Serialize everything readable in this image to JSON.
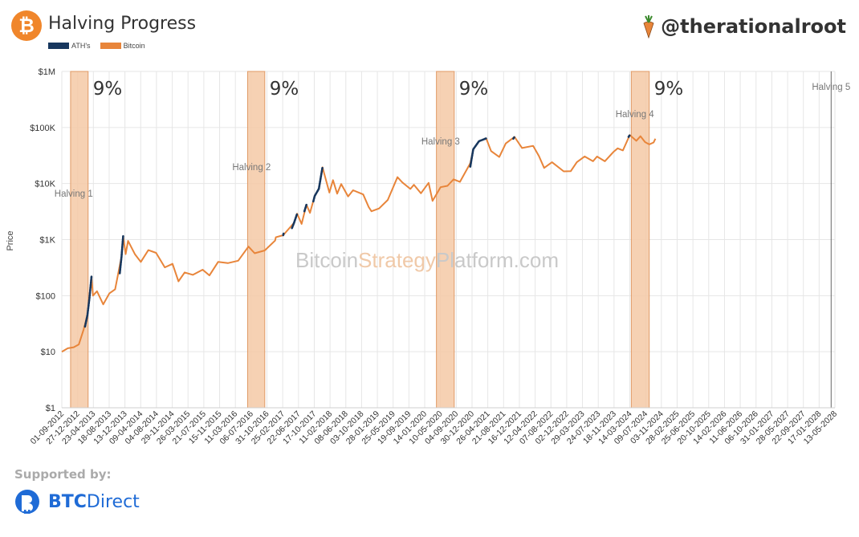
{
  "header": {
    "title": "Halving Progress",
    "logo_glyph": "₿",
    "handle": "@therationalroot"
  },
  "legend": [
    {
      "label": "ATH's",
      "color": "#17375e"
    },
    {
      "label": "Bitcoin",
      "color": "#e8853a"
    }
  ],
  "watermark": {
    "part1": "Bitcoin",
    "part2": "Strategy",
    "part3": "Platform.com"
  },
  "footer": {
    "supported_label": "Supported by:",
    "brand_bold": "BTC",
    "brand_rest": "Direct"
  },
  "chart_data": {
    "type": "line",
    "title": "",
    "ylabel": "Price",
    "yscale": "log",
    "ylim": [
      1,
      1000000
    ],
    "y_ticks": [
      {
        "value": 1,
        "label": "$1"
      },
      {
        "value": 10,
        "label": "$10"
      },
      {
        "value": 100,
        "label": "$100"
      },
      {
        "value": 1000,
        "label": "$1K"
      },
      {
        "value": 10000,
        "label": "$10K"
      },
      {
        "value": 100000,
        "label": "$100K"
      },
      {
        "value": 1000000,
        "label": "$1M"
      }
    ],
    "x_range": [
      "2012-09-01",
      "2028-05-13"
    ],
    "x_ticks": [
      "01-09-2012",
      "27-12-2012",
      "23-04-2013",
      "18-08-2013",
      "13-12-2013",
      "09-04-2014",
      "04-08-2014",
      "29-11-2014",
      "26-03-2015",
      "21-07-2015",
      "15-11-2015",
      "11-03-2016",
      "06-07-2016",
      "31-10-2016",
      "25-02-2017",
      "22-06-2017",
      "17-10-2017",
      "11-02-2018",
      "08-06-2018",
      "03-10-2018",
      "28-01-2019",
      "25-05-2019",
      "19-09-2019",
      "14-01-2020",
      "10-05-2020",
      "04-09-2020",
      "30-12-2020",
      "26-04-2021",
      "21-08-2021",
      "16-12-2021",
      "12-04-2022",
      "07-08-2022",
      "02-12-2022",
      "29-03-2023",
      "24-07-2023",
      "18-11-2023",
      "14-03-2024",
      "09-07-2024",
      "03-11-2024",
      "28-02-2025",
      "25-06-2025",
      "20-10-2025",
      "14-02-2026",
      "11-06-2026",
      "06-10-2026",
      "31-01-2027",
      "28-05-2027",
      "22-09-2027",
      "17-01-2028",
      "13-05-2028"
    ],
    "halvings": [
      {
        "label": "Halving 1",
        "date": "2012-11-28",
        "band_start": "2012-11-05",
        "band_end": "2013-03-15",
        "percent_label": "9%"
      },
      {
        "label": "Halving 2",
        "date": "2016-07-09",
        "band_start": "2016-06-10",
        "band_end": "2016-10-15",
        "percent_label": "9%"
      },
      {
        "label": "Halving 3",
        "date": "2020-05-11",
        "band_start": "2020-04-10",
        "band_end": "2020-08-20",
        "percent_label": "9%"
      },
      {
        "label": "Halving 4",
        "date": "2024-04-20",
        "band_start": "2024-03-25",
        "band_end": "2024-08-05",
        "percent_label": "9%"
      },
      {
        "label": "Halving 5",
        "date": "2028-04-15"
      }
    ],
    "series": [
      {
        "name": "Bitcoin",
        "color": "#e8853a",
        "points": [
          [
            "2012-09-01",
            10
          ],
          [
            "2012-10-15",
            11.5
          ],
          [
            "2012-11-28",
            12
          ],
          [
            "2013-01-05",
            13.5
          ],
          [
            "2013-02-10",
            25
          ],
          [
            "2013-03-10",
            45
          ],
          [
            "2013-04-09",
            220
          ],
          [
            "2013-04-20",
            100
          ],
          [
            "2013-05-20",
            120
          ],
          [
            "2013-07-05",
            70
          ],
          [
            "2013-08-20",
            110
          ],
          [
            "2013-10-01",
            130
          ],
          [
            "2013-11-18",
            500
          ],
          [
            "2013-11-30",
            1150
          ],
          [
            "2013-12-18",
            550
          ],
          [
            "2014-01-05",
            950
          ],
          [
            "2014-02-25",
            550
          ],
          [
            "2014-04-10",
            400
          ],
          [
            "2014-06-05",
            650
          ],
          [
            "2014-08-01",
            580
          ],
          [
            "2014-10-05",
            320
          ],
          [
            "2014-12-01",
            370
          ],
          [
            "2015-01-14",
            180
          ],
          [
            "2015-03-01",
            260
          ],
          [
            "2015-05-01",
            235
          ],
          [
            "2015-07-12",
            290
          ],
          [
            "2015-09-01",
            230
          ],
          [
            "2015-11-04",
            400
          ],
          [
            "2016-01-15",
            380
          ],
          [
            "2016-04-01",
            420
          ],
          [
            "2016-06-16",
            750
          ],
          [
            "2016-08-01",
            570
          ],
          [
            "2016-10-15",
            640
          ],
          [
            "2016-12-31",
            960
          ],
          [
            "2017-01-05",
            1100
          ],
          [
            "2017-03-01",
            1200
          ],
          [
            "2017-05-20",
            2000
          ],
          [
            "2017-06-12",
            2900
          ],
          [
            "2017-07-15",
            1900
          ],
          [
            "2017-08-20",
            4200
          ],
          [
            "2017-09-15",
            3000
          ],
          [
            "2017-10-20",
            6000
          ],
          [
            "2017-11-20",
            8100
          ],
          [
            "2017-12-17",
            19500
          ],
          [
            "2018-02-06",
            6900
          ],
          [
            "2018-03-05",
            11500
          ],
          [
            "2018-04-05",
            6600
          ],
          [
            "2018-05-05",
            9800
          ],
          [
            "2018-06-25",
            5900
          ],
          [
            "2018-08-01",
            7600
          ],
          [
            "2018-10-15",
            6400
          ],
          [
            "2018-11-25",
            3800
          ],
          [
            "2018-12-15",
            3200
          ],
          [
            "2019-02-10",
            3600
          ],
          [
            "2019-04-15",
            5100
          ],
          [
            "2019-06-26",
            13000
          ],
          [
            "2019-08-01",
            10500
          ],
          [
            "2019-09-30",
            8000
          ],
          [
            "2019-10-26",
            9500
          ],
          [
            "2019-12-17",
            6700
          ],
          [
            "2020-02-12",
            10300
          ],
          [
            "2020-03-12",
            4900
          ],
          [
            "2020-05-11",
            8600
          ],
          [
            "2020-07-01",
            9100
          ],
          [
            "2020-08-15",
            11900
          ],
          [
            "2020-10-01",
            10700
          ],
          [
            "2020-12-17",
            23000
          ],
          [
            "2021-01-08",
            41000
          ],
          [
            "2021-02-20",
            57000
          ],
          [
            "2021-04-14",
            64000
          ],
          [
            "2021-05-20",
            38000
          ],
          [
            "2021-07-20",
            29800
          ],
          [
            "2021-09-06",
            52000
          ],
          [
            "2021-11-10",
            68000
          ],
          [
            "2022-01-05",
            43000
          ],
          [
            "2022-03-28",
            47000
          ],
          [
            "2022-05-10",
            31000
          ],
          [
            "2022-06-18",
            19000
          ],
          [
            "2022-08-15",
            24000
          ],
          [
            "2022-11-10",
            16500
          ],
          [
            "2023-01-01",
            16600
          ],
          [
            "2023-02-15",
            24000
          ],
          [
            "2023-04-14",
            30400
          ],
          [
            "2023-06-15",
            25000
          ],
          [
            "2023-07-15",
            30300
          ],
          [
            "2023-09-11",
            25000
          ],
          [
            "2023-11-15",
            37000
          ],
          [
            "2023-12-15",
            42500
          ],
          [
            "2024-01-23",
            39000
          ],
          [
            "2024-03-14",
            73500
          ],
          [
            "2024-05-01",
            58000
          ],
          [
            "2024-06-01",
            70000
          ],
          [
            "2024-07-05",
            55000
          ],
          [
            "2024-08-05",
            50000
          ],
          [
            "2024-09-06",
            54000
          ],
          [
            "2024-09-20",
            63000
          ]
        ]
      },
      {
        "name": "ATH's",
        "color": "#17375e",
        "segments": [
          [
            [
              "2013-02-20",
              28
            ],
            [
              "2013-03-10",
              45
            ],
            [
              "2013-03-25",
              90
            ],
            [
              "2013-04-09",
              220
            ]
          ],
          [
            [
              "2013-11-05",
              250
            ],
            [
              "2013-11-18",
              500
            ],
            [
              "2013-11-30",
              1150
            ]
          ],
          [
            [
              "2017-03-01",
              1200
            ],
            [
              "2017-03-03",
              1280
            ]
          ],
          [
            [
              "2017-05-05",
              1600
            ],
            [
              "2017-05-20",
              2000
            ],
            [
              "2017-06-12",
              2900
            ]
          ],
          [
            [
              "2017-08-05",
              3200
            ],
            [
              "2017-08-20",
              4200
            ]
          ],
          [
            [
              "2017-10-10",
              4800
            ],
            [
              "2017-10-20",
              6000
            ],
            [
              "2017-11-20",
              8100
            ],
            [
              "2017-12-17",
              19500
            ]
          ],
          [
            [
              "2020-12-17",
              20000
            ],
            [
              "2021-01-08",
              41000
            ],
            [
              "2021-02-20",
              57000
            ],
            [
              "2021-04-14",
              64000
            ]
          ],
          [
            [
              "2021-11-01",
              63000
            ],
            [
              "2021-11-10",
              68000
            ]
          ],
          [
            [
              "2024-03-05",
              68000
            ],
            [
              "2024-03-14",
              73500
            ]
          ]
        ]
      }
    ]
  }
}
